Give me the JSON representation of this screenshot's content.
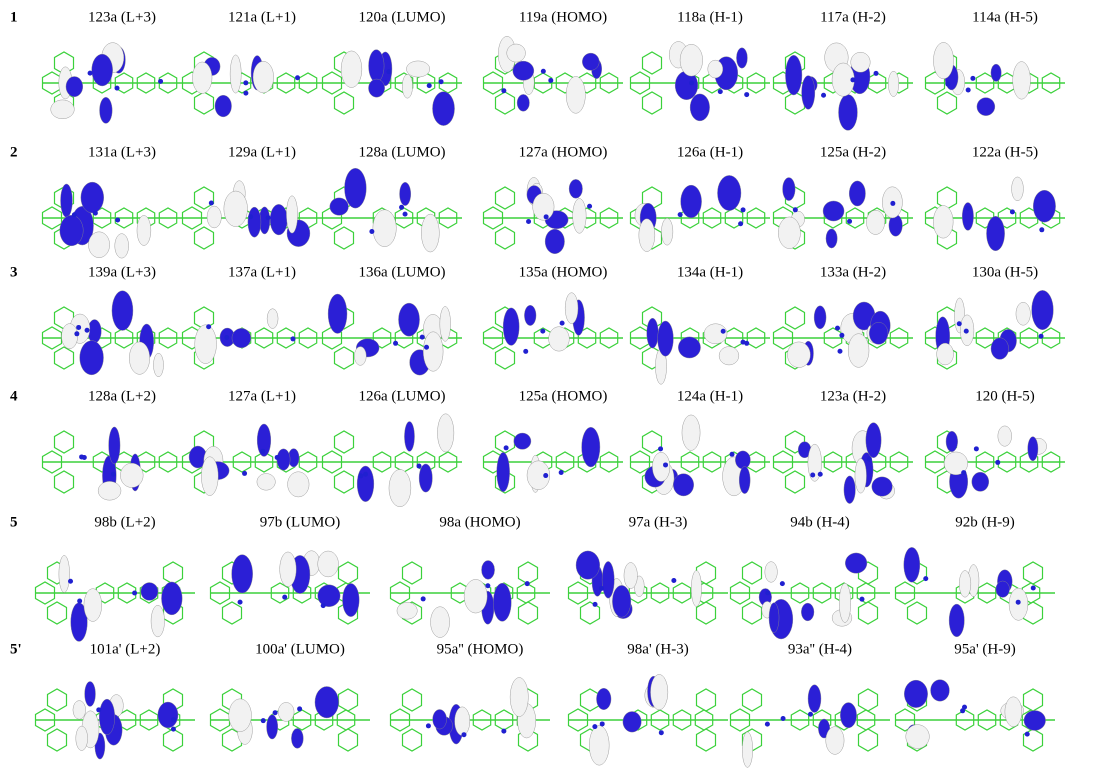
{
  "rows": [
    {
      "label": "1",
      "orbitals": [
        "123a (L+3)",
        "121a (L+1)",
        "120a (LUMO)",
        "119a (HOMO)",
        "118a (H-1)",
        "117a (H-2)",
        "114a (H-5)"
      ]
    },
    {
      "label": "2",
      "orbitals": [
        "131a (L+3)",
        "129a (L+1)",
        "128a (LUMO)",
        "127a (HOMO)",
        "126a (H-1)",
        "125a (H-2)",
        "122a (H-5)"
      ]
    },
    {
      "label": "3",
      "orbitals": [
        "139a (L+3)",
        "137a (L+1)",
        "136a (LUMO)",
        "135a (HOMO)",
        "134a (H-1)",
        "133a (H-2)",
        "130a (H-5)"
      ]
    },
    {
      "label": "4",
      "orbitals": [
        "128a (L+2)",
        "127a (L+1)",
        "126a (LUMO)",
        "125a (HOMO)",
        "124a (H-1)",
        "123a (H-2)",
        "120 (H-5)"
      ]
    },
    {
      "label": "5",
      "orbitals": [
        "98b (L+2)",
        "97b (LUMO)",
        "98a (HOMO)",
        "97a (H-3)",
        "94b (H-4)",
        "92b (H-9)"
      ]
    },
    {
      "label": "5'",
      "orbitals": [
        "101a' (L+2)",
        "100a' (LUMO)",
        "95a'' (HOMO)",
        "98a' (H-3)",
        "93a'' (H-4)",
        "95a' (H-9)"
      ]
    }
  ]
}
